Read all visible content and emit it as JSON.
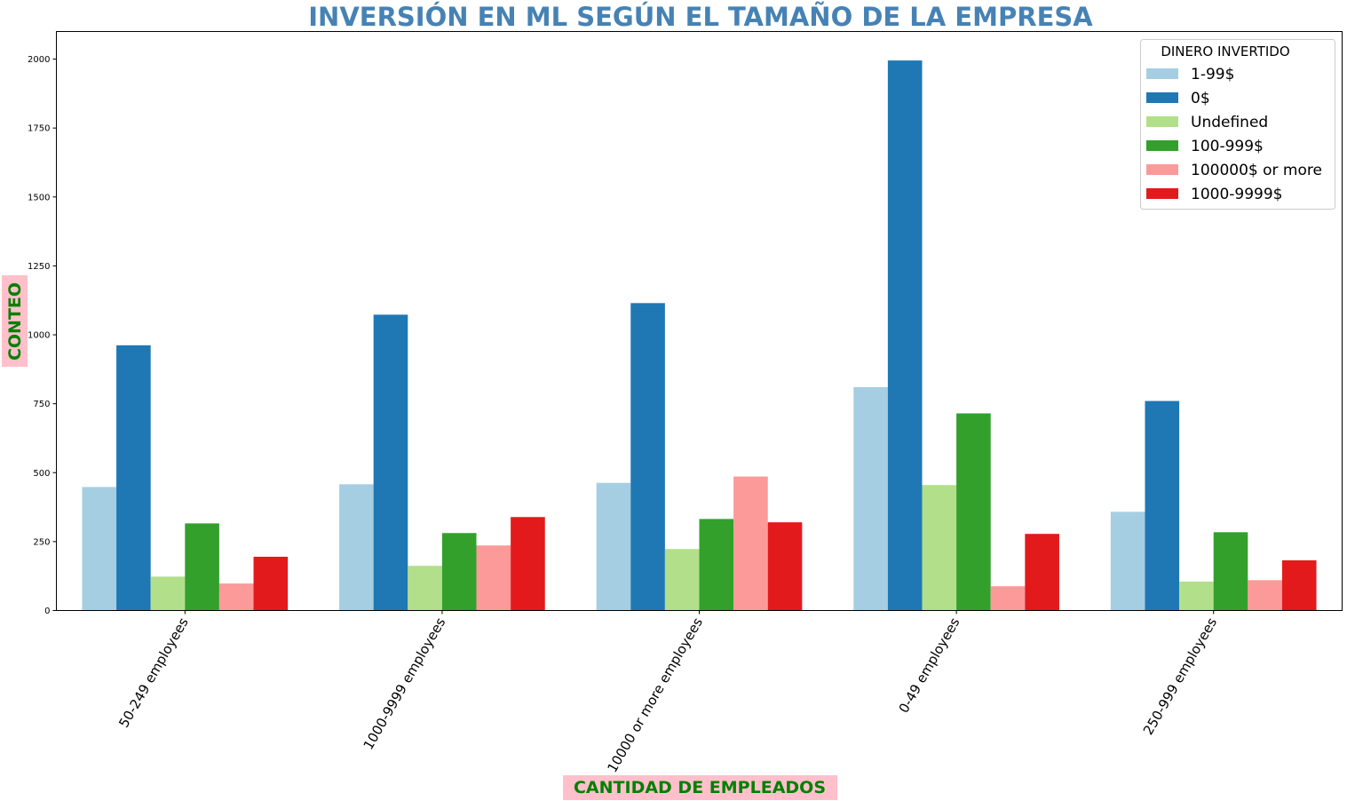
{
  "chart_data": {
    "type": "bar",
    "title": "INVERSIÓN EN ML SEGÚN EL TAMAÑO DE LA EMPRESA",
    "xlabel": "CANTIDAD DE EMPLEADOS",
    "ylabel": "CONTEO",
    "ylim": [
      0,
      2100
    ],
    "yticks": [
      0,
      250,
      500,
      750,
      1000,
      1250,
      1500,
      1750,
      2000
    ],
    "categories": [
      "50-249 employees",
      "1000-9999 employees",
      "10000 or more employees",
      "0-49 employees",
      "250-999 employees"
    ],
    "legend": {
      "title": "DINERO INVERTIDO",
      "placement": "top-right"
    },
    "grid": false,
    "label_highlight_color": "#ffc0cb",
    "series": [
      {
        "name": "1-99$",
        "color": "#a6cee3",
        "values": [
          448,
          458,
          463,
          810,
          358
        ]
      },
      {
        "name": "0$",
        "color": "#1f78b4",
        "values": [
          962,
          1073,
          1115,
          1995,
          760
        ]
      },
      {
        "name": "Undefined",
        "color": "#b2df8a",
        "values": [
          123,
          162,
          223,
          455,
          105
        ]
      },
      {
        "name": "100-999$",
        "color": "#33a02c",
        "values": [
          316,
          281,
          332,
          715,
          284
        ]
      },
      {
        "name": "100000$ or more",
        "color": "#fb9a99",
        "values": [
          98,
          236,
          486,
          88,
          110
        ]
      },
      {
        "name": "1000-9999$",
        "color": "#e31a1c",
        "values": [
          195,
          339,
          320,
          278,
          182
        ]
      }
    ]
  }
}
